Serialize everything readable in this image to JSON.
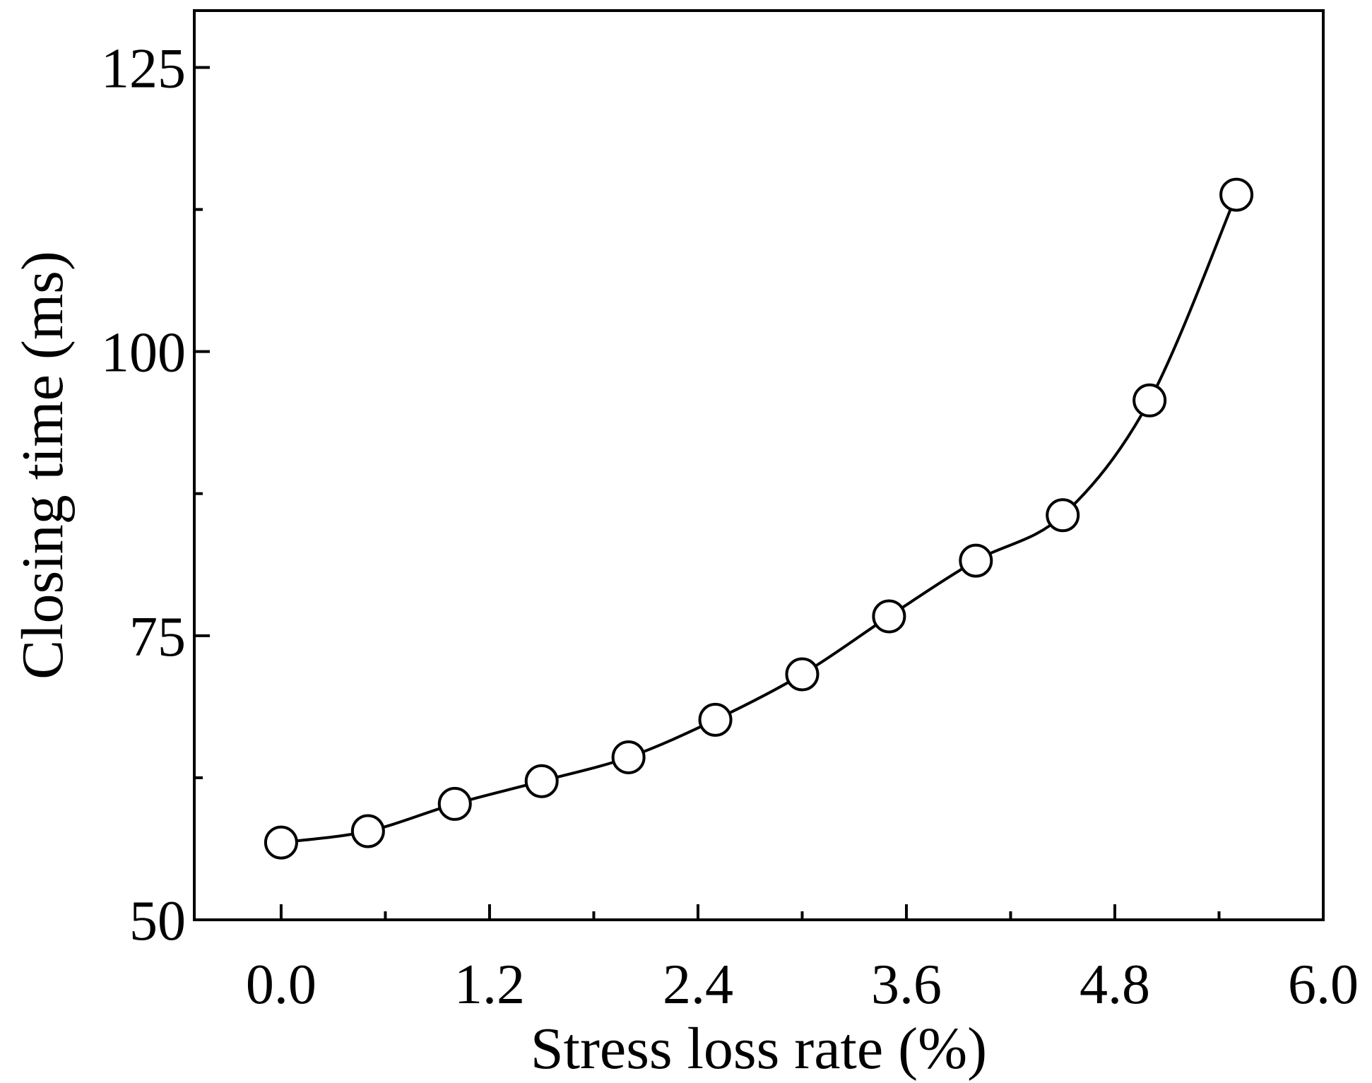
{
  "chart_data": {
    "type": "line",
    "title": "",
    "xlabel": "Stress loss rate (%)",
    "ylabel": "Closing time (ms)",
    "xlim": [
      -0.5,
      6.0
    ],
    "ylim": [
      50,
      130
    ],
    "xticks": [
      0.0,
      1.2,
      2.4,
      3.6,
      4.8,
      6.0
    ],
    "xtick_labels": [
      "0.0",
      "1.2",
      "2.4",
      "3.6",
      "4.8",
      "6.0"
    ],
    "yticks": [
      50,
      75,
      100,
      125
    ],
    "ytick_labels": [
      "50",
      "75",
      "100",
      "125"
    ],
    "grid": false,
    "legend": null,
    "series": [
      {
        "name": "Closing time",
        "marker": "open-circle",
        "line": "smooth",
        "color": "#000000",
        "x": [
          0.0,
          0.5,
          1.0,
          1.5,
          2.0,
          2.5,
          3.0,
          3.5,
          4.0,
          4.5,
          5.0,
          5.5
        ],
        "y": [
          56.8,
          57.8,
          60.2,
          62.2,
          64.3,
          67.6,
          71.6,
          76.7,
          81.6,
          85.6,
          95.7,
          113.8
        ]
      }
    ]
  }
}
